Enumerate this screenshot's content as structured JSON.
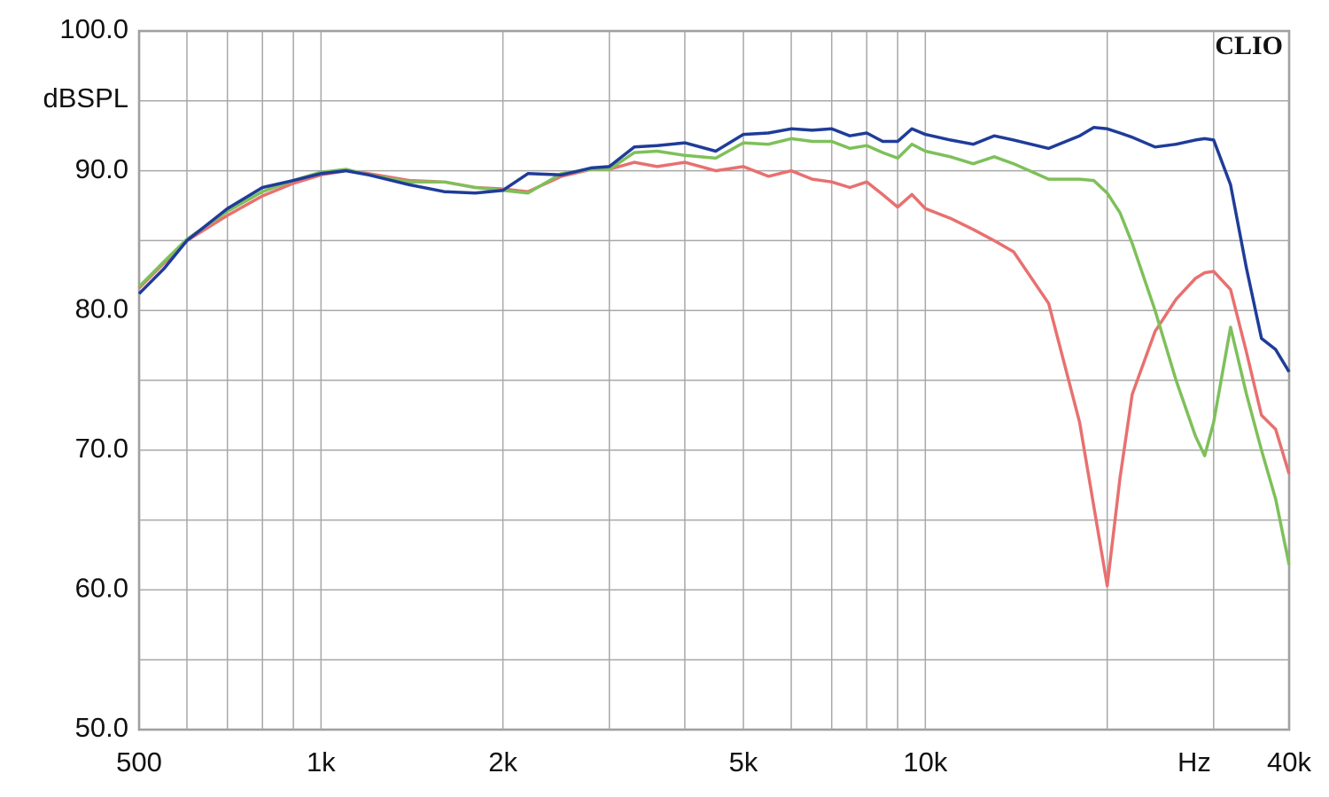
{
  "chart_data": {
    "type": "line",
    "watermark": "CLIO",
    "y_label": "dBSPL",
    "x_unit": "Hz",
    "x_scale": "log",
    "grid": true,
    "xlim": [
      500,
      40000
    ],
    "ylim": [
      50,
      100
    ],
    "xticks": [
      500,
      {
        "value": 1000,
        "label": "1k"
      },
      {
        "value": 2000,
        "label": "2k"
      },
      {
        "value": 5000,
        "label": "5k"
      },
      {
        "value": 10000,
        "label": "10k"
      },
      {
        "value": 40000,
        "label": "40k"
      }
    ],
    "xminor": [
      600,
      700,
      800,
      900,
      3000,
      4000,
      6000,
      7000,
      8000,
      9000,
      20000,
      30000
    ],
    "yticks": [
      {
        "value": 50,
        "label": "50.0"
      },
      {
        "value": 60,
        "label": "60.0"
      },
      {
        "value": 70,
        "label": "70.0"
      },
      {
        "value": 80,
        "label": "80.0"
      },
      {
        "value": 90,
        "label": "90.0"
      },
      {
        "value": 100,
        "label": "100.0"
      }
    ],
    "yminor": [
      55,
      65,
      75,
      85,
      95
    ],
    "x": [
      500,
      550,
      600,
      700,
      800,
      900,
      1000,
      1100,
      1200,
      1400,
      1600,
      1800,
      2000,
      2200,
      2500,
      2800,
      3000,
      3300,
      3600,
      4000,
      4500,
      5000,
      5500,
      6000,
      6500,
      7000,
      7500,
      8000,
      8500,
      9000,
      9500,
      10000,
      11000,
      12000,
      13000,
      14000,
      16000,
      18000,
      19000,
      20000,
      21000,
      22000,
      24000,
      26000,
      28000,
      29000,
      30000,
      32000,
      34000,
      36000,
      38000,
      40000
    ],
    "series": [
      {
        "color": "#e87070",
        "values": [
          81.6,
          83.4,
          85,
          86.8,
          88.2,
          89.1,
          89.7,
          90.0,
          89.8,
          89.3,
          89.2,
          88.8,
          88.7,
          88.5,
          89.6,
          90.1,
          90.1,
          90.6,
          90.3,
          90.6,
          90.0,
          90.3,
          89.6,
          90.0,
          89.4,
          89.2,
          88.8,
          89.2,
          88.3,
          87.4,
          88.3,
          87.3,
          86.6,
          85.8,
          85.0,
          84.2,
          80.5,
          72,
          66,
          60.3,
          68,
          74,
          78.5,
          80.8,
          82.3,
          82.7,
          82.8,
          81.5,
          77,
          72.5,
          71.5,
          68.3
        ]
      },
      {
        "color": "#7ec05a",
        "values": [
          81.7,
          83.5,
          85.1,
          87.1,
          88.5,
          89.3,
          89.9,
          90.1,
          89.7,
          89.2,
          89.2,
          88.8,
          88.6,
          88.4,
          89.8,
          90.1,
          90.1,
          91.3,
          91.4,
          91.1,
          90.9,
          92.0,
          91.9,
          92.3,
          92.1,
          92.1,
          91.6,
          91.8,
          91.3,
          90.9,
          91.9,
          91.4,
          91.0,
          90.5,
          91.0,
          90.5,
          89.4,
          89.4,
          89.3,
          88.4,
          87.0,
          84.8,
          80,
          75,
          71,
          69.6,
          72,
          78.8,
          74,
          70,
          66.5,
          61.8
        ]
      },
      {
        "color": "#1f3c99",
        "values": [
          81.2,
          83,
          85,
          87.3,
          88.8,
          89.3,
          89.8,
          90.0,
          89.7,
          89.0,
          88.5,
          88.4,
          88.6,
          89.8,
          89.7,
          90.2,
          90.3,
          91.7,
          91.8,
          92.0,
          91.4,
          92.6,
          92.7,
          93.0,
          92.9,
          93.0,
          92.5,
          92.7,
          92.1,
          92.1,
          93.0,
          92.6,
          92.2,
          91.9,
          92.5,
          92.2,
          91.6,
          92.5,
          93.1,
          93.0,
          92.7,
          92.4,
          91.7,
          91.9,
          92.2,
          92.3,
          92.2,
          89,
          83,
          78,
          77.2,
          75.6
        ]
      }
    ]
  }
}
